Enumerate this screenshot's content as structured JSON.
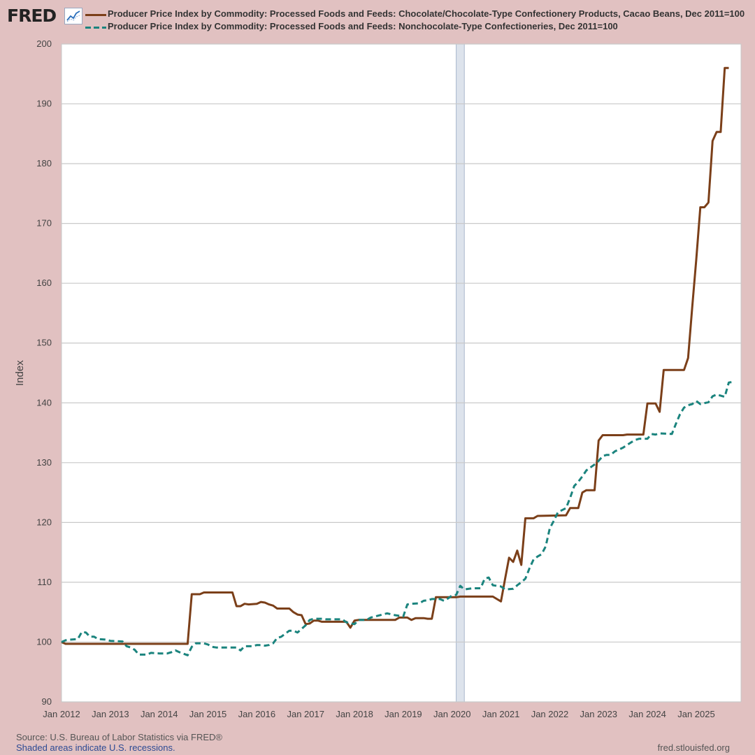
{
  "header": {
    "logo_text": "FRED",
    "logo_icon": "line-chart-icon"
  },
  "chart_data": {
    "type": "line",
    "title": "",
    "xlabel": "",
    "ylabel": "Index",
    "ylim": [
      90,
      200
    ],
    "y_ticks": [
      90,
      100,
      110,
      120,
      130,
      140,
      150,
      160,
      170,
      180,
      190,
      200
    ],
    "x_range": [
      "2012-01",
      "2025-12"
    ],
    "x_ticks": [
      "Jan 2012",
      "Jan 2013",
      "Jan 2014",
      "Jan 2015",
      "Jan 2016",
      "Jan 2017",
      "Jan 2018",
      "Jan 2019",
      "Jan 2020",
      "Jan 2021",
      "Jan 2022",
      "Jan 2023",
      "Jan 2024",
      "Jan 2025"
    ],
    "grid": true,
    "legend_position": "top",
    "recessions": [
      {
        "start": "2020-02",
        "end": "2020-04"
      }
    ],
    "series": [
      {
        "name": "Producer Price Index by Commodity: Processed Foods and Feeds: Chocolate/Chocolate-Type Confectionery Products, Cacao Beans, Dec 2011=100",
        "color": "#7b3f19",
        "dash": "solid",
        "points": [
          [
            "2012-01",
            100.0
          ],
          [
            "2012-02",
            99.7
          ],
          [
            "2014-08",
            99.7
          ],
          [
            "2014-09",
            108.0
          ],
          [
            "2014-11",
            108.0
          ],
          [
            "2014-12",
            108.3
          ],
          [
            "2015-07",
            108.3
          ],
          [
            "2015-08",
            106.0
          ],
          [
            "2015-09",
            106.0
          ],
          [
            "2015-10",
            106.4
          ],
          [
            "2015-11",
            106.3
          ],
          [
            "2016-01",
            106.4
          ],
          [
            "2016-02",
            106.7
          ],
          [
            "2016-03",
            106.6
          ],
          [
            "2016-04",
            106.3
          ],
          [
            "2016-05",
            106.1
          ],
          [
            "2016-06",
            105.6
          ],
          [
            "2016-09",
            105.6
          ],
          [
            "2016-10",
            105.0
          ],
          [
            "2016-11",
            104.6
          ],
          [
            "2016-12",
            104.5
          ],
          [
            "2017-01",
            103.0
          ],
          [
            "2017-02",
            103.1
          ],
          [
            "2017-03",
            103.6
          ],
          [
            "2017-04",
            103.6
          ],
          [
            "2017-05",
            103.4
          ],
          [
            "2017-11",
            103.4
          ],
          [
            "2017-12",
            102.4
          ],
          [
            "2018-01",
            103.6
          ],
          [
            "2018-02",
            103.7
          ],
          [
            "2018-11",
            103.7
          ],
          [
            "2018-12",
            104.1
          ],
          [
            "2019-02",
            104.1
          ],
          [
            "2019-03",
            103.7
          ],
          [
            "2019-04",
            104.0
          ],
          [
            "2019-06",
            104.0
          ],
          [
            "2019-07",
            103.9
          ],
          [
            "2019-08",
            103.9
          ],
          [
            "2019-09",
            107.5
          ],
          [
            "2019-10",
            107.5
          ],
          [
            "2020-02",
            107.5
          ],
          [
            "2020-03",
            107.6
          ],
          [
            "2020-11",
            107.6
          ],
          [
            "2020-12",
            107.2
          ],
          [
            "2021-01",
            106.8
          ],
          [
            "2021-02",
            110.5
          ],
          [
            "2021-03",
            114.1
          ],
          [
            "2021-04",
            113.4
          ],
          [
            "2021-05",
            115.3
          ],
          [
            "2021-06",
            112.9
          ],
          [
            "2021-07",
            120.7
          ],
          [
            "2021-09",
            120.7
          ],
          [
            "2021-10",
            121.1
          ],
          [
            "2022-05",
            121.2
          ],
          [
            "2022-06",
            122.4
          ],
          [
            "2022-08",
            122.4
          ],
          [
            "2022-09",
            125.0
          ],
          [
            "2022-10",
            125.4
          ],
          [
            "2022-12",
            125.4
          ],
          [
            "2023-01",
            133.7
          ],
          [
            "2023-02",
            134.6
          ],
          [
            "2023-07",
            134.6
          ],
          [
            "2023-08",
            134.7
          ],
          [
            "2023-12",
            134.7
          ],
          [
            "2024-01",
            139.9
          ],
          [
            "2024-03",
            139.9
          ],
          [
            "2024-04",
            138.5
          ],
          [
            "2024-05",
            145.5
          ],
          [
            "2024-10",
            145.5
          ],
          [
            "2024-11",
            147.5
          ],
          [
            "2024-12",
            156.0
          ],
          [
            "2025-01",
            164.0
          ],
          [
            "2025-02",
            172.7
          ],
          [
            "2025-03",
            172.7
          ],
          [
            "2025-04",
            173.5
          ],
          [
            "2025-05",
            183.8
          ],
          [
            "2025-06",
            185.3
          ],
          [
            "2025-07",
            185.3
          ],
          [
            "2025-08",
            196.0
          ],
          [
            "2025-09",
            196.0
          ]
        ]
      },
      {
        "name": "Producer Price Index by Commodity: Processed Foods and Feeds: Nonchocolate-Type Confectioneries, Dec 2011=100",
        "color": "#1b847e",
        "dash": "dashed",
        "points": [
          [
            "2012-01",
            100.0
          ],
          [
            "2012-02",
            100.3
          ],
          [
            "2012-03",
            100.4
          ],
          [
            "2012-05",
            100.5
          ],
          [
            "2012-06",
            101.7
          ],
          [
            "2012-07",
            101.6
          ],
          [
            "2012-08",
            100.9
          ],
          [
            "2012-09",
            100.9
          ],
          [
            "2012-10",
            100.5
          ],
          [
            "2012-12",
            100.4
          ],
          [
            "2013-01",
            100.2
          ],
          [
            "2013-04",
            100.1
          ],
          [
            "2013-05",
            99.3
          ],
          [
            "2013-06",
            99.1
          ],
          [
            "2013-07",
            98.7
          ],
          [
            "2013-08",
            97.9
          ],
          [
            "2013-10",
            97.9
          ],
          [
            "2013-11",
            98.2
          ],
          [
            "2014-01",
            98.1
          ],
          [
            "2014-03",
            98.1
          ],
          [
            "2014-04",
            98.3
          ],
          [
            "2014-05",
            98.6
          ],
          [
            "2014-06",
            98.3
          ],
          [
            "2014-08",
            97.8
          ],
          [
            "2014-09",
            99.2
          ],
          [
            "2014-10",
            99.8
          ],
          [
            "2014-12",
            99.8
          ],
          [
            "2015-01",
            99.6
          ],
          [
            "2015-02",
            99.2
          ],
          [
            "2015-03",
            99.1
          ],
          [
            "2015-08",
            99.1
          ],
          [
            "2015-09",
            98.6
          ],
          [
            "2015-10",
            99.3
          ],
          [
            "2015-12",
            99.3
          ],
          [
            "2016-01",
            99.5
          ],
          [
            "2016-02",
            99.5
          ],
          [
            "2016-03",
            99.4
          ],
          [
            "2016-04",
            99.5
          ],
          [
            "2016-05",
            99.8
          ],
          [
            "2016-06",
            100.7
          ],
          [
            "2016-07",
            100.9
          ],
          [
            "2016-09",
            101.9
          ],
          [
            "2016-10",
            101.9
          ],
          [
            "2016-11",
            101.6
          ],
          [
            "2016-12",
            102.2
          ],
          [
            "2017-01",
            102.8
          ],
          [
            "2017-02",
            103.7
          ],
          [
            "2017-03",
            103.9
          ],
          [
            "2017-05",
            103.9
          ],
          [
            "2017-06",
            103.8
          ],
          [
            "2017-10",
            103.8
          ],
          [
            "2017-11",
            103.3
          ],
          [
            "2018-01",
            103.0
          ],
          [
            "2018-02",
            103.7
          ],
          [
            "2018-04",
            103.7
          ],
          [
            "2018-05",
            104.1
          ],
          [
            "2018-09",
            104.8
          ],
          [
            "2018-11",
            104.5
          ],
          [
            "2019-01",
            104.3
          ],
          [
            "2019-02",
            106.3
          ],
          [
            "2019-03",
            106.4
          ],
          [
            "2019-05",
            106.5
          ],
          [
            "2019-06",
            106.9
          ],
          [
            "2019-07",
            107.0
          ],
          [
            "2019-08",
            107.2
          ],
          [
            "2019-10",
            107.2
          ],
          [
            "2019-11",
            106.9
          ],
          [
            "2019-12",
            107.3
          ],
          [
            "2020-01",
            107.8
          ],
          [
            "2020-02",
            107.9
          ],
          [
            "2020-03",
            109.4
          ],
          [
            "2020-04",
            108.8
          ],
          [
            "2020-06",
            109.0
          ],
          [
            "2020-08",
            109.0
          ],
          [
            "2020-09",
            110.6
          ],
          [
            "2020-10",
            110.8
          ],
          [
            "2020-11",
            109.5
          ],
          [
            "2021-01",
            109.3
          ],
          [
            "2021-02",
            108.8
          ],
          [
            "2021-04",
            108.9
          ],
          [
            "2021-05",
            109.5
          ],
          [
            "2021-06",
            110.0
          ],
          [
            "2021-07",
            110.6
          ],
          [
            "2021-08",
            112.3
          ],
          [
            "2021-09",
            113.8
          ],
          [
            "2021-10",
            114.3
          ],
          [
            "2021-11",
            114.7
          ],
          [
            "2021-12",
            116.0
          ],
          [
            "2022-01",
            119.0
          ],
          [
            "2022-02",
            120.3
          ],
          [
            "2022-03",
            121.7
          ],
          [
            "2022-05",
            122.4
          ],
          [
            "2022-06",
            124.1
          ],
          [
            "2022-07",
            126.1
          ],
          [
            "2022-08",
            126.8
          ],
          [
            "2022-09",
            127.7
          ],
          [
            "2022-10",
            128.7
          ],
          [
            "2022-11",
            129.2
          ],
          [
            "2022-12",
            129.7
          ],
          [
            "2023-01",
            130.3
          ],
          [
            "2023-02",
            131.1
          ],
          [
            "2023-03",
            131.3
          ],
          [
            "2023-04",
            131.3
          ],
          [
            "2023-05",
            131.9
          ],
          [
            "2023-07",
            132.5
          ],
          [
            "2023-09",
            133.4
          ],
          [
            "2023-10",
            133.8
          ],
          [
            "2023-11",
            134.0
          ],
          [
            "2024-01",
            134.0
          ],
          [
            "2024-02",
            134.8
          ],
          [
            "2024-03",
            134.7
          ],
          [
            "2024-04",
            134.9
          ],
          [
            "2024-07",
            134.8
          ],
          [
            "2024-08",
            136.5
          ],
          [
            "2024-09",
            138.1
          ],
          [
            "2024-10",
            139.2
          ],
          [
            "2024-11",
            139.6
          ],
          [
            "2024-12",
            139.8
          ],
          [
            "2025-01",
            140.3
          ],
          [
            "2025-02",
            139.8
          ],
          [
            "2025-04",
            140.1
          ],
          [
            "2025-05",
            141.1
          ],
          [
            "2025-06",
            141.4
          ],
          [
            "2025-08",
            141.0
          ],
          [
            "2025-09",
            143.4
          ],
          [
            "2025-10",
            143.5
          ]
        ]
      }
    ]
  },
  "footer": {
    "source": "Source: U.S. Bureau of Labor Statistics via FRED®",
    "note": "Shaded areas indicate U.S. recessions.",
    "url": "fred.stlouisfed.org"
  }
}
